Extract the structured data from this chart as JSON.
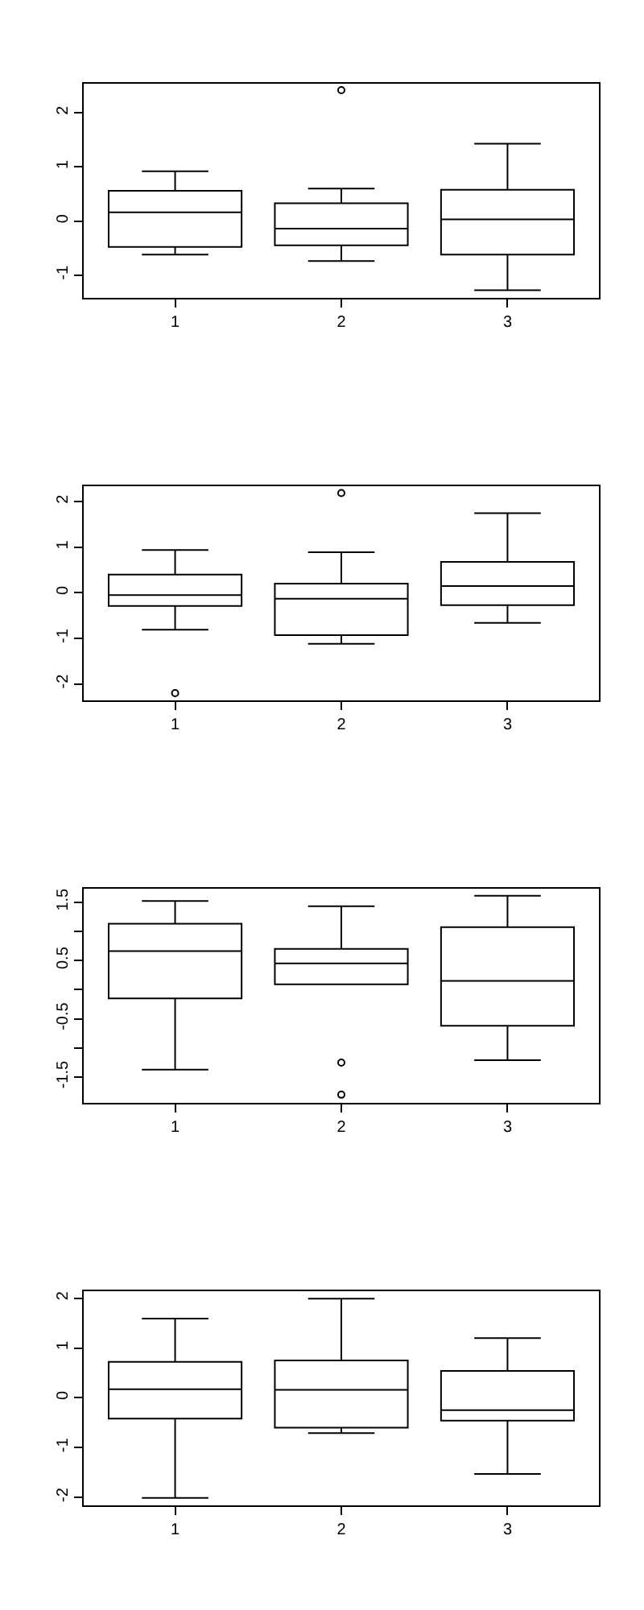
{
  "chart_data": [
    {
      "type": "box",
      "categories": [
        "1",
        "2",
        "3"
      ],
      "ylim": [
        -1.42,
        2.54
      ],
      "yticks": [
        -1,
        0,
        1,
        2
      ],
      "grid": false,
      "marker": "circle",
      "boxes": [
        {
          "low": -0.62,
          "q1": -0.48,
          "median": 0.16,
          "q3": 0.56,
          "high": 0.92
        },
        {
          "low": -0.74,
          "q1": -0.45,
          "median": -0.14,
          "q3": 0.33,
          "high": 0.6,
          "outliers": [
            2.42
          ]
        },
        {
          "low": -1.28,
          "q1": -0.62,
          "median": 0.03,
          "q3": 0.58,
          "high": 1.43
        }
      ]
    },
    {
      "type": "box",
      "categories": [
        "1",
        "2",
        "3"
      ],
      "ylim": [
        -2.36,
        2.34
      ],
      "yticks": [
        -2,
        -1,
        0,
        1,
        2
      ],
      "grid": false,
      "marker": "circle",
      "boxes": [
        {
          "low": -0.81,
          "q1": -0.29,
          "median": -0.05,
          "q3": 0.4,
          "high": 0.94,
          "outliers": [
            -2.2
          ]
        },
        {
          "low": -1.12,
          "q1": -0.93,
          "median": -0.13,
          "q3": 0.2,
          "high": 0.89,
          "outliers": [
            2.19
          ]
        },
        {
          "low": -0.66,
          "q1": -0.27,
          "median": 0.15,
          "q3": 0.68,
          "high": 1.75
        }
      ]
    },
    {
      "type": "box",
      "categories": [
        "1",
        "2",
        "3"
      ],
      "ylim": [
        -1.94,
        1.73
      ],
      "yticks": [
        -1.5,
        {
          "value": -1,
          "label": null
        },
        -0.5,
        {
          "value": 0,
          "label": null
        },
        0.5,
        {
          "value": 1,
          "label": null
        },
        1.5
      ],
      "grid": false,
      "marker": "circle",
      "boxes": [
        {
          "low": -1.37,
          "q1": -0.15,
          "median": 0.66,
          "q3": 1.13,
          "high": 1.52
        },
        {
          "low": 0.09,
          "q1": 0.09,
          "median": 0.45,
          "q3": 0.7,
          "high": 1.43,
          "outliers": [
            -1.25,
            -1.8
          ]
        },
        {
          "low": -1.21,
          "q1": -0.62,
          "median": 0.15,
          "q3": 1.07,
          "high": 1.61
        }
      ]
    },
    {
      "type": "box",
      "categories": [
        "1",
        "2",
        "3"
      ],
      "ylim": [
        -2.16,
        2.14
      ],
      "yticks": [
        -2,
        -1,
        0,
        1,
        2
      ],
      "grid": false,
      "marker": "circle",
      "boxes": [
        {
          "low": -2.01,
          "q1": -0.42,
          "median": 0.17,
          "q3": 0.72,
          "high": 1.59
        },
        {
          "low": -0.71,
          "q1": -0.6,
          "median": 0.16,
          "q3": 0.75,
          "high": 1.99
        },
        {
          "low": -1.53,
          "q1": -0.46,
          "median": -0.25,
          "q3": 0.54,
          "high": 1.2
        }
      ]
    }
  ]
}
